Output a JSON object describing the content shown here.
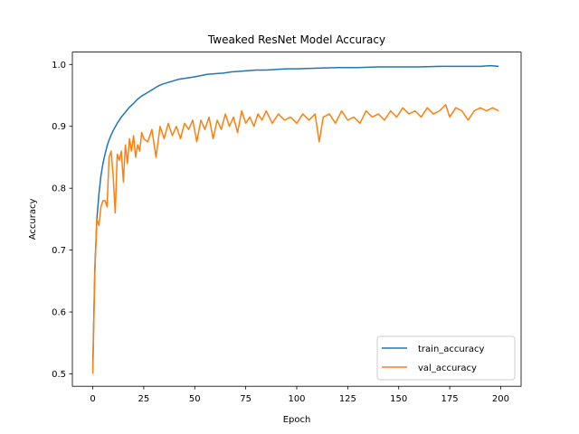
{
  "chart_data": {
    "type": "line",
    "title": "Tweaked ResNet Model Accuracy",
    "xlabel": "Epoch",
    "ylabel": "Accuracy",
    "xlim": [
      -10,
      210
    ],
    "ylim": [
      0.48,
      1.02
    ],
    "xticks": [
      0,
      25,
      50,
      75,
      100,
      125,
      150,
      175,
      200
    ],
    "yticks": [
      0.5,
      0.6,
      0.7,
      0.8,
      0.9,
      1.0
    ],
    "ytick_labels": [
      "0.5",
      "0.6",
      "0.7",
      "0.8",
      "0.9",
      "1.0"
    ],
    "grid": false,
    "legend_position": "lower-right",
    "series": [
      {
        "name": "train_accuracy",
        "color": "#1f77b4",
        "x": [
          0,
          1,
          2,
          3,
          4,
          5,
          6,
          7,
          8,
          9,
          10,
          12,
          14,
          16,
          18,
          20,
          22,
          24,
          26,
          28,
          30,
          32,
          34,
          36,
          38,
          40,
          42,
          44,
          46,
          48,
          50,
          53,
          56,
          60,
          64,
          68,
          72,
          76,
          80,
          85,
          90,
          95,
          100,
          110,
          120,
          130,
          140,
          150,
          160,
          170,
          180,
          190,
          195,
          199
        ],
        "y": [
          0.51,
          0.67,
          0.75,
          0.79,
          0.82,
          0.84,
          0.855,
          0.868,
          0.878,
          0.886,
          0.893,
          0.905,
          0.915,
          0.923,
          0.931,
          0.937,
          0.944,
          0.949,
          0.953,
          0.957,
          0.961,
          0.965,
          0.968,
          0.97,
          0.972,
          0.974,
          0.976,
          0.977,
          0.978,
          0.979,
          0.98,
          0.982,
          0.984,
          0.985,
          0.986,
          0.988,
          0.989,
          0.99,
          0.991,
          0.991,
          0.992,
          0.993,
          0.993,
          0.994,
          0.995,
          0.995,
          0.996,
          0.996,
          0.996,
          0.997,
          0.997,
          0.997,
          0.998,
          0.997
        ]
      },
      {
        "name": "val_accuracy",
        "color": "#ff7f0e",
        "x": [
          0,
          1,
          2,
          3,
          4,
          5,
          6,
          7,
          8,
          9,
          10,
          11,
          12,
          13,
          14,
          15,
          16,
          17,
          18,
          19,
          20,
          21,
          22,
          23,
          24,
          25,
          27,
          29,
          31,
          33,
          35,
          37,
          39,
          41,
          43,
          45,
          47,
          49,
          51,
          53,
          55,
          57,
          59,
          61,
          63,
          65,
          67,
          69,
          71,
          73,
          75,
          77,
          79,
          81,
          83,
          85,
          88,
          91,
          94,
          97,
          100,
          103,
          106,
          109,
          111,
          113,
          116,
          119,
          122,
          125,
          128,
          131,
          134,
          137,
          140,
          143,
          146,
          149,
          152,
          155,
          158,
          161,
          164,
          167,
          170,
          173,
          175,
          178,
          181,
          184,
          187,
          190,
          193,
          196,
          199
        ],
        "y": [
          0.5,
          0.66,
          0.75,
          0.74,
          0.77,
          0.78,
          0.78,
          0.77,
          0.85,
          0.86,
          0.82,
          0.76,
          0.855,
          0.845,
          0.86,
          0.81,
          0.87,
          0.84,
          0.88,
          0.86,
          0.885,
          0.85,
          0.87,
          0.86,
          0.89,
          0.88,
          0.875,
          0.895,
          0.85,
          0.9,
          0.88,
          0.905,
          0.885,
          0.9,
          0.88,
          0.905,
          0.895,
          0.91,
          0.875,
          0.91,
          0.895,
          0.915,
          0.88,
          0.91,
          0.895,
          0.92,
          0.9,
          0.915,
          0.89,
          0.925,
          0.905,
          0.915,
          0.9,
          0.92,
          0.91,
          0.925,
          0.905,
          0.92,
          0.91,
          0.915,
          0.905,
          0.92,
          0.91,
          0.92,
          0.875,
          0.915,
          0.92,
          0.905,
          0.925,
          0.91,
          0.915,
          0.905,
          0.925,
          0.915,
          0.92,
          0.91,
          0.925,
          0.915,
          0.93,
          0.92,
          0.925,
          0.915,
          0.93,
          0.92,
          0.925,
          0.935,
          0.915,
          0.93,
          0.925,
          0.91,
          0.925,
          0.93,
          0.925,
          0.93,
          0.925
        ]
      }
    ]
  }
}
